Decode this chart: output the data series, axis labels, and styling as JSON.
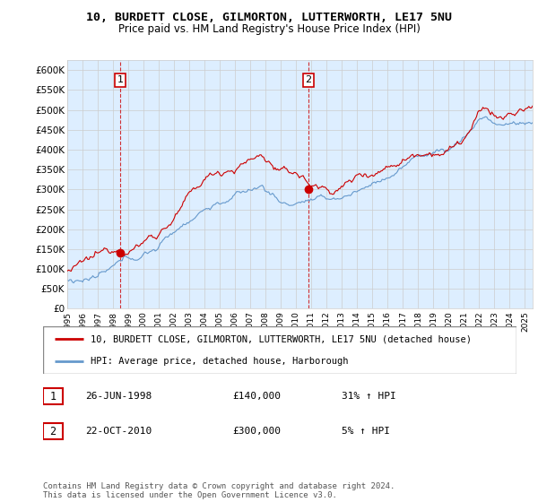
{
  "title1": "10, BURDETT CLOSE, GILMORTON, LUTTERWORTH, LE17 5NU",
  "title2": "Price paid vs. HM Land Registry's House Price Index (HPI)",
  "ylabel_ticks": [
    "£0",
    "£50K",
    "£100K",
    "£150K",
    "£200K",
    "£250K",
    "£300K",
    "£350K",
    "£400K",
    "£450K",
    "£500K",
    "£550K",
    "£600K"
  ],
  "ytick_values": [
    0,
    50000,
    100000,
    150000,
    200000,
    250000,
    300000,
    350000,
    400000,
    450000,
    500000,
    550000,
    600000
  ],
  "ylim": [
    0,
    625000
  ],
  "xlim_start": 1995.0,
  "xlim_end": 2025.5,
  "point1_x": 1998.48,
  "point1_y": 140000,
  "point2_x": 2010.8,
  "point2_y": 300000,
  "point1_date": "26-JUN-1998",
  "point1_price": "£140,000",
  "point1_hpi": "31% ↑ HPI",
  "point2_date": "22-OCT-2010",
  "point2_price": "£300,000",
  "point2_hpi": "5% ↑ HPI",
  "line1_color": "#cc0000",
  "line2_color": "#6699cc",
  "plot_bg_color": "#ddeeff",
  "legend1": "10, BURDETT CLOSE, GILMORTON, LUTTERWORTH, LE17 5NU (detached house)",
  "legend2": "HPI: Average price, detached house, Harborough",
  "footnote": "Contains HM Land Registry data © Crown copyright and database right 2024.\nThis data is licensed under the Open Government Licence v3.0.",
  "bg_color": "#ffffff",
  "grid_color": "#cccccc"
}
